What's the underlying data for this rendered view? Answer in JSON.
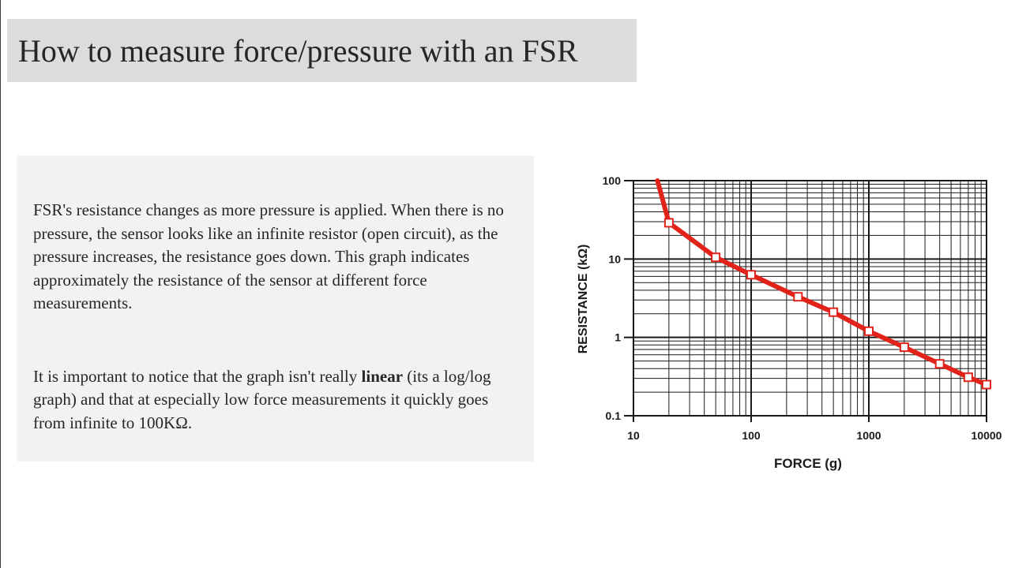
{
  "slide": {
    "title": "How to measure force/pressure with an FSR",
    "para1": "FSR's resistance changes as more pressure is applied. When there is no pressure, the sensor looks like an infinite resistor (open circuit), as the pressure increases, the resistance goes down. This graph indicates approximately the resistance of the sensor at different force measurements.",
    "para2_pre": "It is important to notice that the graph isn't really ",
    "para2_bold": "linear",
    "para2_post": " (its a log/log graph) and that at especially low force measurements it quickly goes from infinite to 100KΩ."
  },
  "chart_data": {
    "type": "line",
    "xlabel": "FORCE (g)",
    "ylabel": "RESISTANCE (kΩ)",
    "x_scale": "log",
    "y_scale": "log",
    "xlim": [
      10,
      10000
    ],
    "ylim": [
      0.1,
      100
    ],
    "x_ticks": [
      "10",
      "100",
      "1000",
      "10000"
    ],
    "y_ticks": [
      "0.1",
      "1",
      "10",
      "100"
    ],
    "grid": true,
    "line_color": "#e2231a",
    "series": [
      {
        "x": [
          16,
          20,
          50,
          100,
          250,
          500,
          1000,
          2000,
          4000,
          7000,
          10000
        ],
        "y": [
          100,
          29,
          10.5,
          6.3,
          3.3,
          2.1,
          1.2,
          0.75,
          0.46,
          0.31,
          0.25
        ],
        "markers": [
          false,
          true,
          true,
          true,
          true,
          true,
          true,
          true,
          true,
          true,
          true
        ]
      }
    ]
  }
}
